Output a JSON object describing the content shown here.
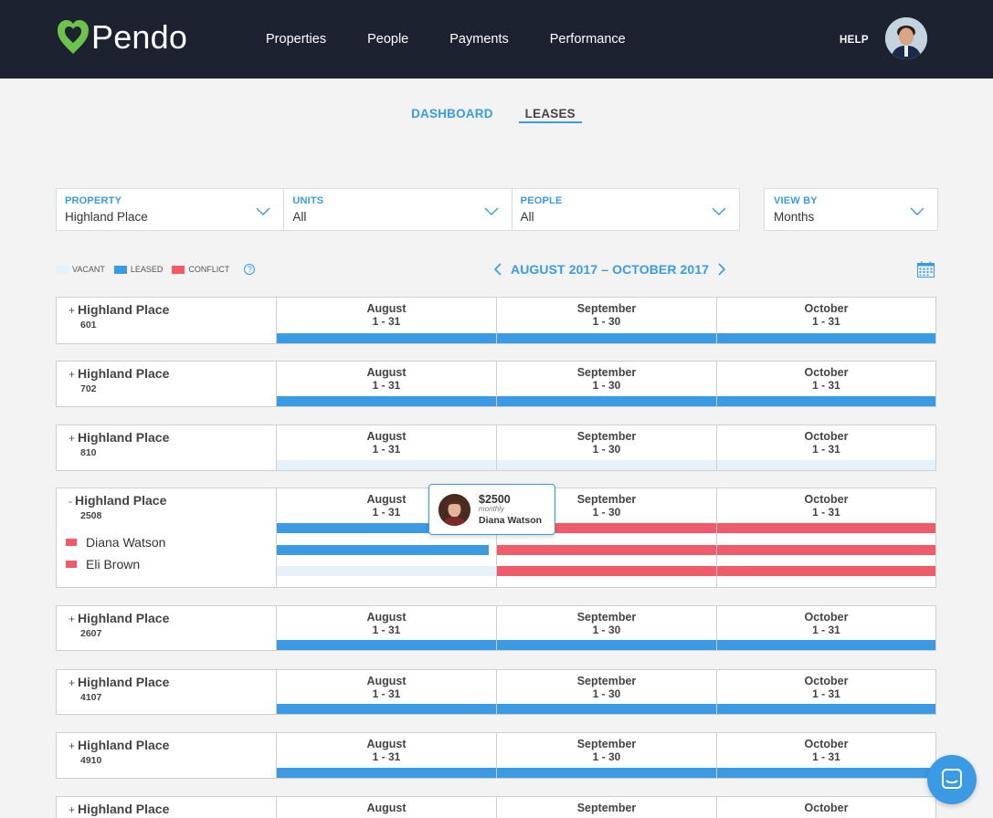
{
  "brand": {
    "name": "Pendo",
    "color": "#6cc24a"
  },
  "nav": {
    "items": [
      "Properties",
      "People",
      "Payments",
      "Performance"
    ],
    "help": "HELP"
  },
  "tabs": {
    "dashboard": "DASHBOARD",
    "leases": "LEASES"
  },
  "filters": {
    "property": {
      "label": "PROPERTY",
      "value": "Highland Place"
    },
    "units": {
      "label": "UNITS",
      "value": "All"
    },
    "people": {
      "label": "PEOPLE",
      "value": "All"
    },
    "view_by": {
      "label": "VIEW BY",
      "value": "Months"
    }
  },
  "legend": {
    "vacant": "VACANT",
    "leased": "LEASED",
    "conflict": "CONFLICT",
    "help": "?"
  },
  "range": {
    "label": "AUGUST 2017 – OCTOBER 2017"
  },
  "colors": {
    "leased": "#3a9be4",
    "conflict": "#f05a69",
    "vacant": "#e6f1fa",
    "accent": "#3a9be4"
  },
  "months": [
    {
      "name": "August",
      "range": "1 - 31"
    },
    {
      "name": "September",
      "range": "1 - 30"
    },
    {
      "name": "October",
      "range": "1 - 31"
    }
  ],
  "rows": [
    {
      "toggle": "+",
      "property": "Highland Place",
      "unit": "601"
    },
    {
      "toggle": "+",
      "property": "Highland Place",
      "unit": "702"
    },
    {
      "toggle": "+",
      "property": "Highland Place",
      "unit": "810"
    },
    {
      "toggle": "-",
      "property": "Highland Place",
      "unit": "2508",
      "people": [
        "Diana Watson",
        "Eli Brown"
      ]
    },
    {
      "toggle": "+",
      "property": "Highland Place",
      "unit": "2607"
    },
    {
      "toggle": "+",
      "property": "Highland Place",
      "unit": "4107"
    },
    {
      "toggle": "+",
      "property": "Highland Place",
      "unit": "4910"
    },
    {
      "toggle": "+",
      "property": "Highland Place",
      "unit": ""
    }
  ],
  "tooltip": {
    "amount": "$2500",
    "frequency": "monthly",
    "name": "Diana Watson"
  }
}
